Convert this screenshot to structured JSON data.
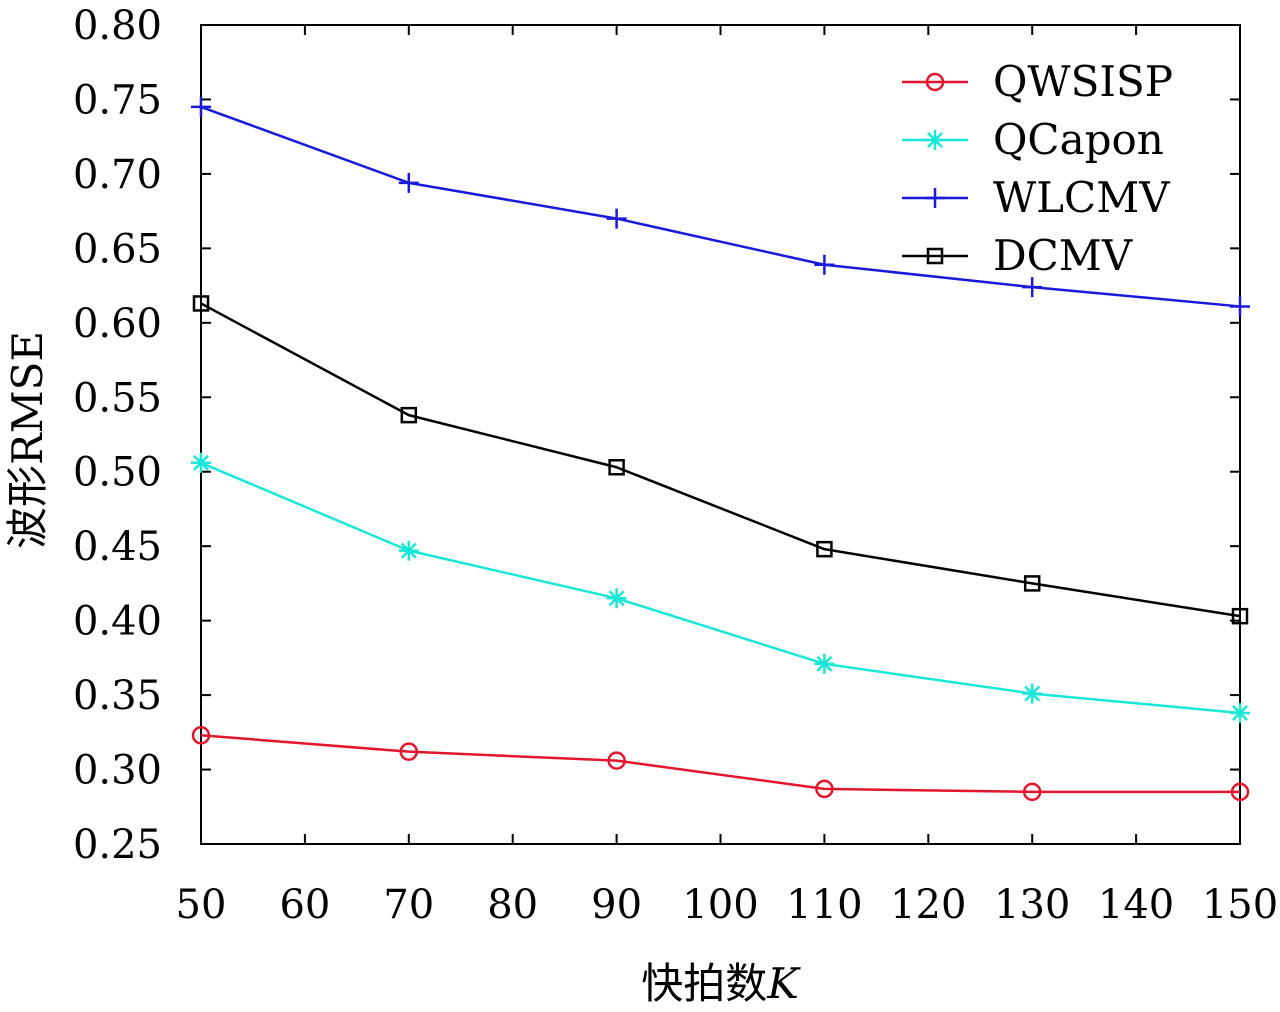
{
  "chart_data": {
    "type": "line",
    "xlabel": "快拍数K",
    "ylabel": "波形RMSE",
    "xlim": [
      50,
      150
    ],
    "ylim": [
      0.25,
      0.8
    ],
    "x_ticks": [
      "50",
      "60",
      "70",
      "80",
      "90",
      "100",
      "110",
      "120",
      "130",
      "140",
      "150"
    ],
    "y_ticks": [
      "0.25",
      "0.30",
      "0.35",
      "0.40",
      "0.45",
      "0.50",
      "0.55",
      "0.60",
      "0.65",
      "0.70",
      "0.75",
      "0.80"
    ],
    "grid": false,
    "legend_position": "top-right",
    "x": [
      50,
      70,
      90,
      110,
      130,
      150
    ],
    "series": [
      {
        "name": "QWSISP",
        "color": "#e3162d",
        "marker": "circle",
        "values": [
          0.323,
          0.312,
          0.306,
          0.287,
          0.285,
          0.285
        ]
      },
      {
        "name": "QCapon",
        "color": "#19e8d6",
        "marker": "asterisk",
        "values": [
          0.506,
          0.447,
          0.415,
          0.371,
          0.351,
          0.338
        ]
      },
      {
        "name": "WLCMV",
        "color": "#1a1adb",
        "marker": "plus",
        "values": [
          0.745,
          0.694,
          0.67,
          0.639,
          0.624,
          0.611
        ]
      },
      {
        "name": "DCMV",
        "color": "#000000",
        "marker": "square",
        "values": [
          0.613,
          0.538,
          0.503,
          0.448,
          0.425,
          0.403
        ]
      }
    ]
  }
}
